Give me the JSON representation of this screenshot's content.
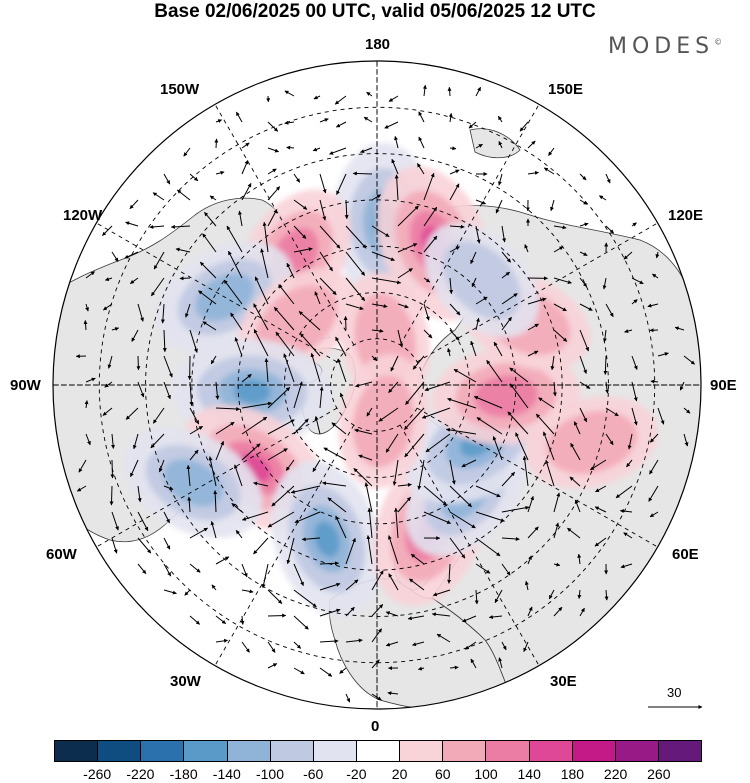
{
  "title": "Base 02/06/2025 00 UTC, valid 05/06/2025 12 UTC",
  "brand": "MODES",
  "brand_mark": "©",
  "longitude_labels": {
    "top": "180",
    "bottom": "0",
    "left": "90W",
    "right": "90E",
    "upper_left_1": "150W",
    "upper_left_2": "120W",
    "lower_left_1": "60W",
    "lower_left_2": "30W",
    "upper_right_1": "150E",
    "upper_right_2": "120E",
    "lower_right_1": "60E",
    "lower_right_2": "30E"
  },
  "reference_vector": {
    "value": "30"
  },
  "colorbar": {
    "ticks": [
      "-260",
      "-220",
      "-180",
      "-140",
      "-100",
      "-60",
      "-20",
      "20",
      "60",
      "100",
      "140",
      "180",
      "220",
      "260"
    ],
    "colors": [
      "#0d2d4e",
      "#0f4c80",
      "#2a71ad",
      "#5a9ac8",
      "#8fb4d8",
      "#bfc9e2",
      "#e2e3f0",
      "#ffffff",
      "#f8d3d8",
      "#f3aab8",
      "#eb7ca4",
      "#df4797",
      "#c41a88",
      "#981a86",
      "#651a7b"
    ]
  },
  "legend_colors": {
    "land": "#e6e6e6",
    "ocean": "#ffffff",
    "coast": "#333333"
  },
  "anomaly_centers": [
    {
      "sign": "neg",
      "level": 3,
      "lon": 177,
      "lat": 55
    },
    {
      "sign": "pos",
      "level": 3,
      "lon": 158,
      "lat": 57
    },
    {
      "sign": "pos",
      "level": 2,
      "lon": -147,
      "lat": 57
    },
    {
      "sign": "neg",
      "level": 2,
      "lon": -120,
      "lat": 52
    },
    {
      "sign": "pos",
      "level": 1,
      "lon": -128,
      "lat": 68
    },
    {
      "sign": "neg",
      "level": 3,
      "lon": -87,
      "lat": 63
    },
    {
      "sign": "pos",
      "level": 3,
      "lon": -56,
      "lat": 58
    },
    {
      "sign": "neg",
      "level": 2,
      "lon": -62,
      "lat": 45
    },
    {
      "sign": "neg",
      "level": 3,
      "lon": -18,
      "lat": 55
    },
    {
      "sign": "pos",
      "level": 3,
      "lon": 20,
      "lat": 57
    },
    {
      "sign": "neg",
      "level": 2,
      "lon": 40,
      "lat": 60
    },
    {
      "sign": "neg",
      "level": 3,
      "lon": 60,
      "lat": 65
    },
    {
      "sign": "pos",
      "level": 2,
      "lon": 85,
      "lat": 62
    },
    {
      "sign": "pos",
      "level": 1,
      "lon": 113,
      "lat": 55
    },
    {
      "sign": "neg",
      "level": 1,
      "lon": 135,
      "lat": 58
    },
    {
      "sign": "pos",
      "level": 1,
      "lon": 170,
      "lat": 80
    },
    {
      "sign": "pos",
      "level": 1,
      "lon": 10,
      "lat": 82
    },
    {
      "sign": "pos",
      "level": 1,
      "lon": 75,
      "lat": 42
    }
  ]
}
